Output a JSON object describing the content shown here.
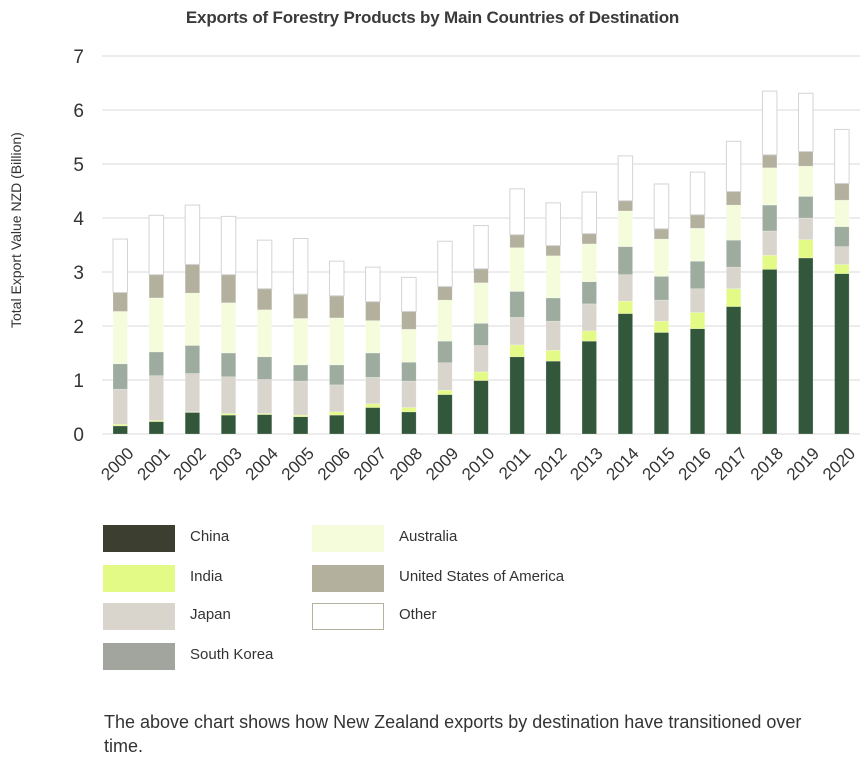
{
  "chart_data": {
    "type": "bar",
    "stacked": true,
    "title": "Exports of Forestry Products by Main Countries of Destination",
    "xlabel": "",
    "ylabel": "Total Export Value NZD (Billion)",
    "ylim": [
      0,
      7
    ],
    "yticks": [
      "0",
      "1",
      "2",
      "3",
      "4",
      "5",
      "6",
      "7"
    ],
    "grid": true,
    "legend_position": "bottom",
    "categories": [
      "2000",
      "2001",
      "2002",
      "2003",
      "2004",
      "2005",
      "2006",
      "2007",
      "2008",
      "2009",
      "2010",
      "2011",
      "2012",
      "2013",
      "2014",
      "2015",
      "2016",
      "2017",
      "2018",
      "2019",
      "2020"
    ],
    "series": [
      {
        "name": "China",
        "color": "#33573a",
        "legend_color": "#3c3f30",
        "values": [
          0.15,
          0.23,
          0.4,
          0.35,
          0.36,
          0.32,
          0.35,
          0.49,
          0.41,
          0.73,
          0.99,
          1.43,
          1.35,
          1.72,
          2.23,
          1.88,
          1.95,
          2.36,
          3.05,
          3.26,
          2.97
        ]
      },
      {
        "name": "India",
        "color": "#e4fa86",
        "legend_color": "#e4fa86",
        "values": [
          0.03,
          0.02,
          0.01,
          0.03,
          0.02,
          0.03,
          0.06,
          0.07,
          0.08,
          0.08,
          0.16,
          0.22,
          0.2,
          0.19,
          0.23,
          0.21,
          0.3,
          0.33,
          0.26,
          0.34,
          0.17
        ]
      },
      {
        "name": "Japan",
        "color": "#d9d5cd",
        "legend_color": "#d9d5cd",
        "values": [
          0.65,
          0.83,
          0.71,
          0.68,
          0.63,
          0.63,
          0.5,
          0.49,
          0.49,
          0.51,
          0.49,
          0.51,
          0.54,
          0.5,
          0.49,
          0.39,
          0.44,
          0.4,
          0.45,
          0.4,
          0.33
        ]
      },
      {
        "name": "South Korea",
        "color": "#9dac9e",
        "legend_color": "#a2a59e",
        "values": [
          0.47,
          0.44,
          0.52,
          0.44,
          0.42,
          0.3,
          0.37,
          0.45,
          0.35,
          0.4,
          0.41,
          0.48,
          0.43,
          0.41,
          0.52,
          0.44,
          0.51,
          0.5,
          0.48,
          0.4,
          0.37
        ]
      },
      {
        "name": "Australia",
        "color": "#f5fcdc",
        "legend_color": "#f5fcdc",
        "values": [
          0.97,
          1.0,
          0.97,
          0.93,
          0.87,
          0.86,
          0.87,
          0.6,
          0.61,
          0.76,
          0.75,
          0.81,
          0.78,
          0.7,
          0.66,
          0.69,
          0.61,
          0.65,
          0.69,
          0.56,
          0.49
        ]
      },
      {
        "name": "United States of America",
        "color": "#b3b09e",
        "legend_color": "#b3b09e",
        "values": [
          0.35,
          0.43,
          0.53,
          0.52,
          0.39,
          0.45,
          0.41,
          0.35,
          0.33,
          0.25,
          0.26,
          0.24,
          0.19,
          0.19,
          0.19,
          0.19,
          0.25,
          0.25,
          0.24,
          0.27,
          0.31
        ]
      },
      {
        "name": "Other",
        "color": "#ffffff",
        "legend_color": "#ffffff",
        "values": [
          0.99,
          1.1,
          1.1,
          1.08,
          0.9,
          1.03,
          0.64,
          0.64,
          0.63,
          0.84,
          0.8,
          0.85,
          0.79,
          0.77,
          0.83,
          0.83,
          0.79,
          0.93,
          1.18,
          1.08,
          1.0
        ]
      }
    ]
  },
  "caption": "The above chart shows how New Zealand exports by destination have transitioned over time."
}
